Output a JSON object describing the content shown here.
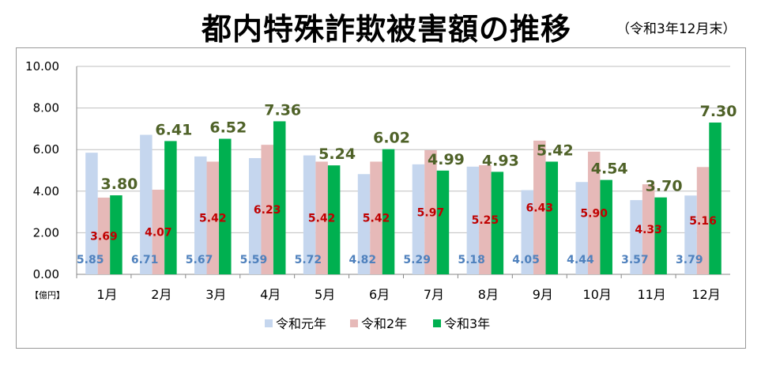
{
  "chart_data": {
    "type": "bar",
    "title": "都内特殊詐欺被害額の推移",
    "subtitle": "（令和3年12月末）",
    "unit_label": "【億円】",
    "categories": [
      "1月",
      "2月",
      "3月",
      "4月",
      "5月",
      "6月",
      "7月",
      "8月",
      "9月",
      "10月",
      "11月",
      "12月"
    ],
    "ylim": [
      0,
      10
    ],
    "yticks": [
      "0.00",
      "2.00",
      "4.00",
      "6.00",
      "8.00",
      "10.00"
    ],
    "grid": true,
    "legend_position": "bottom",
    "series": [
      {
        "name": "令和元年",
        "color": "#c5d6ee",
        "label_color": "#4f81bd",
        "values": [
          5.85,
          6.71,
          5.67,
          5.59,
          5.72,
          4.82,
          5.29,
          5.18,
          4.05,
          4.44,
          3.57,
          3.79
        ]
      },
      {
        "name": "令和2年",
        "color": "#e6b9b8",
        "label_color": "#c00000",
        "values": [
          3.69,
          4.07,
          5.42,
          6.23,
          5.42,
          5.42,
          5.97,
          5.25,
          6.43,
          5.9,
          4.33,
          5.16
        ]
      },
      {
        "name": "令和3年",
        "color": "#00b050",
        "label_color": "#4f6228",
        "values": [
          3.8,
          6.41,
          6.52,
          7.36,
          5.24,
          6.02,
          4.99,
          4.93,
          5.42,
          4.54,
          3.7,
          7.3
        ]
      }
    ]
  }
}
